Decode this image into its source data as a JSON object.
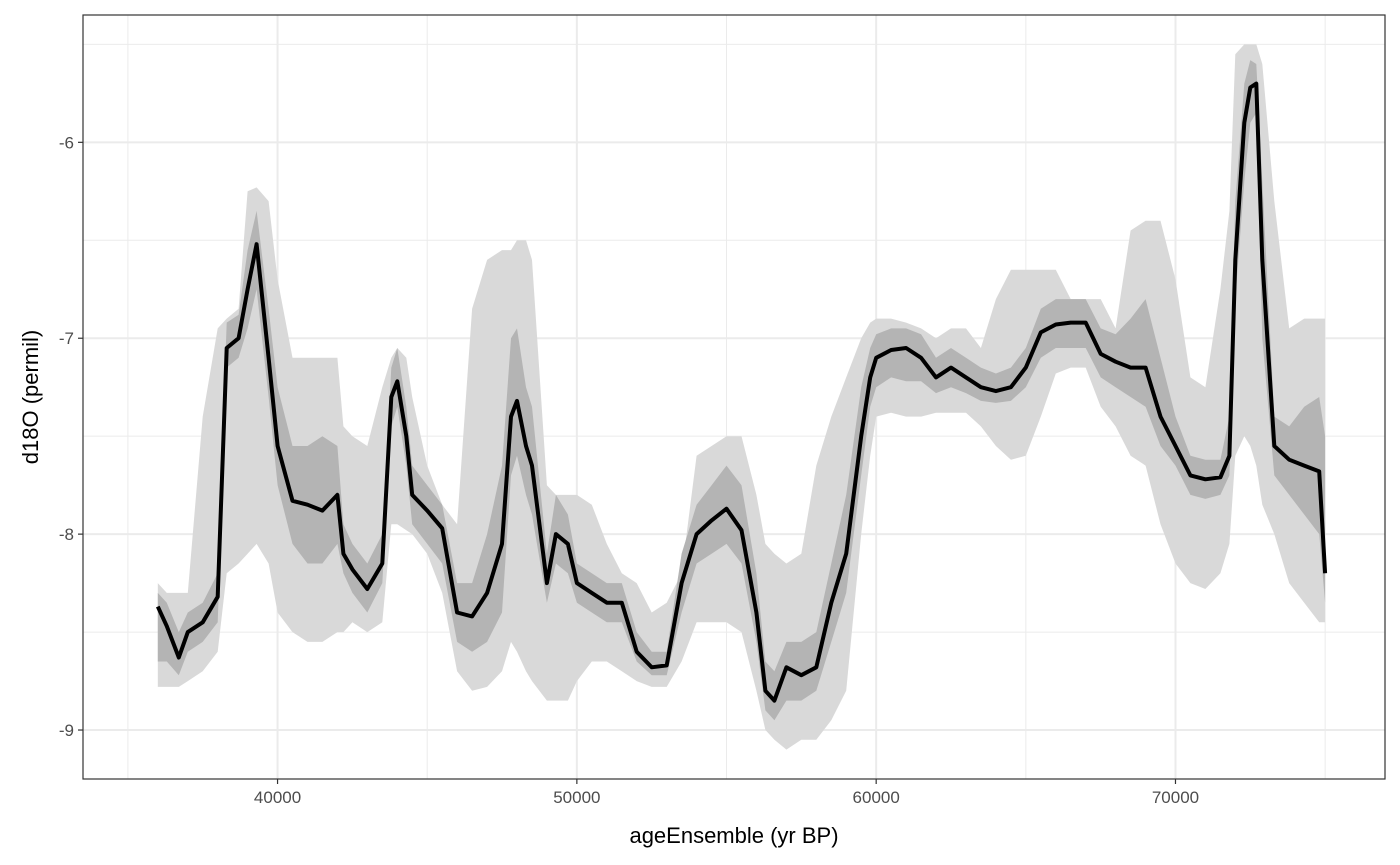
{
  "chart_data": {
    "type": "area",
    "title": "",
    "xlabel": "ageEnsemble (yr BP)",
    "ylabel": "d18O (permil)",
    "xlim": [
      33500,
      77000
    ],
    "ylim": [
      -9.25,
      -5.35
    ],
    "x_ticks": [
      40000,
      50000,
      60000,
      70000
    ],
    "x_tick_labels": [
      "40000",
      "50000",
      "60000",
      "70000"
    ],
    "y_ticks": [
      -6,
      -7,
      -8,
      -9
    ],
    "y_tick_labels": [
      "-6",
      "-7",
      "-8",
      "-9"
    ],
    "grid": true,
    "legend": "none",
    "colors": {
      "outer_band": "#d9d9d9",
      "inner_band": "#b4b4b4",
      "median": "#000000",
      "grid": "#ebebeb",
      "panel_border": "#333333"
    },
    "x": [
      36000,
      36300,
      36700,
      37000,
      37500,
      38000,
      38300,
      38700,
      39000,
      39300,
      39700,
      40000,
      40500,
      41000,
      41500,
      42000,
      42200,
      42500,
      43000,
      43500,
      43800,
      44000,
      44300,
      44500,
      45000,
      45500,
      46000,
      46500,
      47000,
      47500,
      47800,
      48000,
      48300,
      48500,
      49000,
      49300,
      49700,
      50000,
      50500,
      51000,
      51500,
      52000,
      52500,
      53000,
      53500,
      54000,
      54500,
      55000,
      55500,
      56000,
      56300,
      56600,
      57000,
      57500,
      58000,
      58500,
      59000,
      59500,
      59800,
      60000,
      60500,
      61000,
      61500,
      62000,
      62500,
      63000,
      63500,
      64000,
      64500,
      65000,
      65500,
      66000,
      66500,
      67000,
      67500,
      68000,
      68500,
      69000,
      69500,
      70000,
      70500,
      71000,
      71500,
      71800,
      72000,
      72300,
      72500,
      72700,
      72900,
      73300,
      73800,
      74300,
      74800,
      75000
    ],
    "median": [
      -8.37,
      -8.47,
      -8.63,
      -8.5,
      -8.45,
      -8.32,
      -7.05,
      -7.0,
      -6.75,
      -6.52,
      -7.1,
      -7.55,
      -7.83,
      -7.85,
      -7.88,
      -7.8,
      -8.1,
      -8.18,
      -8.28,
      -8.15,
      -7.3,
      -7.22,
      -7.5,
      -7.8,
      -7.88,
      -7.97,
      -8.4,
      -8.42,
      -8.3,
      -8.05,
      -7.4,
      -7.32,
      -7.55,
      -7.65,
      -8.25,
      -8.0,
      -8.05,
      -8.25,
      -8.3,
      -8.35,
      -8.35,
      -8.6,
      -8.68,
      -8.67,
      -8.25,
      -8.0,
      -7.93,
      -7.87,
      -7.98,
      -8.4,
      -8.8,
      -8.85,
      -8.68,
      -8.72,
      -8.68,
      -8.35,
      -8.1,
      -7.5,
      -7.2,
      -7.1,
      -7.06,
      -7.05,
      -7.1,
      -7.2,
      -7.15,
      -7.2,
      -7.25,
      -7.27,
      -7.25,
      -7.15,
      -6.97,
      -6.93,
      -6.92,
      -6.92,
      -7.08,
      -7.12,
      -7.15,
      -7.15,
      -7.4,
      -7.55,
      -7.7,
      -7.72,
      -7.71,
      -7.6,
      -6.6,
      -5.9,
      -5.72,
      -5.7,
      -6.6,
      -7.55,
      -7.62,
      -7.65,
      -7.68,
      -8.2
    ],
    "inner_lower": [
      -8.65,
      -8.65,
      -8.72,
      -8.6,
      -8.55,
      -8.45,
      -7.15,
      -7.1,
      -6.95,
      -6.75,
      -7.3,
      -7.75,
      -8.05,
      -8.15,
      -8.15,
      -8.05,
      -8.2,
      -8.3,
      -8.4,
      -8.25,
      -7.45,
      -7.35,
      -7.65,
      -7.95,
      -8.05,
      -8.15,
      -8.55,
      -8.6,
      -8.55,
      -8.4,
      -7.7,
      -7.6,
      -7.8,
      -7.9,
      -8.35,
      -8.15,
      -8.2,
      -8.35,
      -8.4,
      -8.45,
      -8.45,
      -8.65,
      -8.72,
      -8.72,
      -8.4,
      -8.15,
      -8.1,
      -8.05,
      -8.15,
      -8.55,
      -8.9,
      -8.95,
      -8.85,
      -8.85,
      -8.8,
      -8.55,
      -8.3,
      -7.7,
      -7.35,
      -7.25,
      -7.2,
      -7.22,
      -7.22,
      -7.28,
      -7.25,
      -7.28,
      -7.32,
      -7.33,
      -7.32,
      -7.25,
      -7.1,
      -7.05,
      -7.05,
      -7.05,
      -7.2,
      -7.25,
      -7.3,
      -7.35,
      -7.55,
      -7.65,
      -7.8,
      -7.82,
      -7.8,
      -7.7,
      -6.8,
      -6.2,
      -5.9,
      -5.85,
      -7.0,
      -7.7,
      -7.8,
      -7.9,
      -8.0,
      -8.35
    ],
    "inner_upper": [
      -8.3,
      -8.35,
      -8.5,
      -8.4,
      -8.35,
      -8.2,
      -6.92,
      -6.88,
      -6.55,
      -6.35,
      -6.85,
      -7.25,
      -7.55,
      -7.55,
      -7.5,
      -7.55,
      -7.95,
      -8.05,
      -8.15,
      -8.0,
      -7.15,
      -7.05,
      -7.35,
      -7.65,
      -7.75,
      -7.85,
      -8.25,
      -8.25,
      -8.0,
      -7.65,
      -7.0,
      -6.95,
      -7.25,
      -7.35,
      -8.1,
      -7.8,
      -7.9,
      -8.15,
      -8.2,
      -8.25,
      -8.25,
      -8.5,
      -8.6,
      -8.6,
      -8.1,
      -7.85,
      -7.75,
      -7.65,
      -7.75,
      -8.2,
      -8.65,
      -8.7,
      -8.55,
      -8.55,
      -8.5,
      -8.15,
      -7.8,
      -7.25,
      -7.05,
      -6.98,
      -6.95,
      -6.95,
      -6.98,
      -7.1,
      -7.05,
      -7.1,
      -7.15,
      -7.18,
      -7.15,
      -7.05,
      -6.85,
      -6.8,
      -6.8,
      -6.8,
      -6.95,
      -6.98,
      -6.9,
      -6.8,
      -7.1,
      -7.4,
      -7.6,
      -7.62,
      -7.62,
      -7.4,
      -6.3,
      -5.7,
      -5.58,
      -5.6,
      -6.2,
      -7.4,
      -7.45,
      -7.35,
      -7.3,
      -7.5
    ],
    "outer_lower": [
      -8.78,
      -8.78,
      -8.78,
      -8.75,
      -8.7,
      -8.6,
      -8.2,
      -8.15,
      -8.1,
      -8.05,
      -8.15,
      -8.4,
      -8.5,
      -8.55,
      -8.55,
      -8.5,
      -8.5,
      -8.45,
      -8.5,
      -8.45,
      -7.95,
      -7.95,
      -7.98,
      -8.0,
      -8.1,
      -8.3,
      -8.7,
      -8.8,
      -8.78,
      -8.7,
      -8.55,
      -8.6,
      -8.7,
      -8.75,
      -8.85,
      -8.85,
      -8.85,
      -8.75,
      -8.65,
      -8.65,
      -8.7,
      -8.75,
      -8.78,
      -8.78,
      -8.65,
      -8.45,
      -8.45,
      -8.45,
      -8.5,
      -8.8,
      -9.0,
      -9.05,
      -9.1,
      -9.05,
      -9.05,
      -8.95,
      -8.8,
      -8.0,
      -7.6,
      -7.4,
      -7.38,
      -7.4,
      -7.4,
      -7.38,
      -7.38,
      -7.38,
      -7.45,
      -7.55,
      -7.62,
      -7.6,
      -7.4,
      -7.18,
      -7.15,
      -7.15,
      -7.35,
      -7.45,
      -7.6,
      -7.65,
      -7.95,
      -8.15,
      -8.25,
      -8.28,
      -8.2,
      -8.05,
      -7.6,
      -7.5,
      -7.55,
      -7.65,
      -7.85,
      -8.0,
      -8.25,
      -8.35,
      -8.45,
      -8.45
    ],
    "outer_upper": [
      -8.25,
      -8.3,
      -8.3,
      -8.3,
      -7.4,
      -6.95,
      -6.9,
      -6.85,
      -6.25,
      -6.23,
      -6.3,
      -6.7,
      -7.1,
      -7.1,
      -7.1,
      -7.1,
      -7.45,
      -7.5,
      -7.55,
      -7.25,
      -7.1,
      -7.05,
      -7.1,
      -7.3,
      -7.65,
      -7.85,
      -7.95,
      -6.85,
      -6.6,
      -6.55,
      -6.55,
      -6.5,
      -6.5,
      -6.6,
      -7.75,
      -7.8,
      -7.8,
      -7.8,
      -7.85,
      -8.05,
      -8.2,
      -8.25,
      -8.4,
      -8.35,
      -8.2,
      -7.6,
      -7.55,
      -7.5,
      -7.5,
      -7.8,
      -8.05,
      -8.1,
      -8.15,
      -8.1,
      -7.65,
      -7.4,
      -7.2,
      -7.0,
      -6.92,
      -6.9,
      -6.9,
      -6.92,
      -6.95,
      -7.0,
      -6.95,
      -6.95,
      -7.05,
      -6.8,
      -6.65,
      -6.65,
      -6.65,
      -6.65,
      -6.8,
      -6.8,
      -6.8,
      -6.95,
      -6.45,
      -6.4,
      -6.4,
      -6.7,
      -7.2,
      -7.25,
      -6.75,
      -6.35,
      -5.55,
      -5.5,
      -5.5,
      -5.5,
      -5.6,
      -6.3,
      -6.95,
      -6.9,
      -6.9,
      -6.9
    ]
  }
}
